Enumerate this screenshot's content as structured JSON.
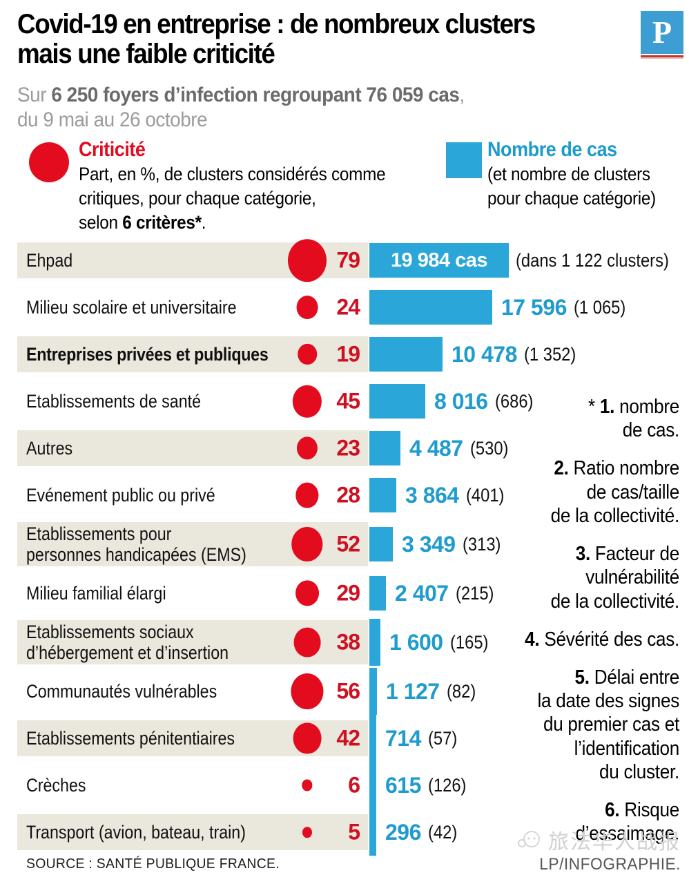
{
  "header": {
    "title_line1": "Covid-19 en entreprise : de nombreux clusters",
    "title_line2": "mais une faible criticité",
    "logo_letter": "P"
  },
  "subtitle": {
    "prefix": "Sur ",
    "bold": "6 250 foyers d’infection regroupant 76 059 cas",
    "suffix": ",",
    "line2": "du 9 mai au 26 octobre"
  },
  "legend": {
    "criticite": {
      "title": "Criticité",
      "lines": [
        "Part, en %, de clusters considérés comme",
        "critiques, pour chaque catégorie,"
      ],
      "last_prefix": "selon ",
      "last_bold": "6 critères*",
      "last_suffix": "."
    },
    "cases": {
      "title": "Nombre de cas",
      "lines": [
        "(et nombre de clusters",
        "pour chaque catégorie)"
      ]
    }
  },
  "rows": [
    {
      "label": "Ehpad",
      "label2": "",
      "bold": false,
      "shaded": true,
      "crit": 79,
      "crit_label": "79",
      "cases": 19984,
      "inside_label": "19 984 cas",
      "cases_label": "",
      "clusters_label": "(dans 1 122 clusters)"
    },
    {
      "label": "Milieu scolaire et universitaire",
      "label2": "",
      "bold": false,
      "shaded": false,
      "crit": 24,
      "crit_label": "24",
      "cases": 17596,
      "cases_label": "17 596",
      "clusters_label": "(1 065)"
    },
    {
      "label": "Entreprises privées et publiques",
      "label2": "",
      "bold": true,
      "shaded": true,
      "crit": 19,
      "crit_label": "19",
      "cases": 10478,
      "cases_label": "10 478",
      "clusters_label": "(1 352)"
    },
    {
      "label": "Etablissements de santé",
      "label2": "",
      "bold": false,
      "shaded": false,
      "crit": 45,
      "crit_label": "45",
      "cases": 8016,
      "cases_label": "8 016",
      "clusters_label": "(686)"
    },
    {
      "label": "Autres",
      "label2": "",
      "bold": false,
      "shaded": true,
      "crit": 23,
      "crit_label": "23",
      "cases": 4487,
      "cases_label": "4 487",
      "clusters_label": "(530)"
    },
    {
      "label": "Evénement public ou privé",
      "label2": "",
      "bold": false,
      "shaded": false,
      "crit": 28,
      "crit_label": "28",
      "cases": 3864,
      "cases_label": "3 864",
      "clusters_label": "(401)"
    },
    {
      "label": "Etablissements pour",
      "label2": "personnes handicapées (EMS)",
      "bold": false,
      "shaded": true,
      "crit": 52,
      "crit_label": "52",
      "cases": 3349,
      "cases_label": "3 349",
      "clusters_label": "(313)"
    },
    {
      "label": "Milieu familial élargi",
      "label2": "",
      "bold": false,
      "shaded": false,
      "crit": 29,
      "crit_label": "29",
      "cases": 2407,
      "cases_label": "2 407",
      "clusters_label": "(215)"
    },
    {
      "label": "Etablissements sociaux",
      "label2": "d’hébergement et d’insertion",
      "bold": false,
      "shaded": true,
      "crit": 38,
      "crit_label": "38",
      "cases": 1600,
      "cases_label": "1 600",
      "clusters_label": "(165)"
    },
    {
      "label": "Communautés vulnérables",
      "label2": "",
      "bold": false,
      "shaded": false,
      "crit": 56,
      "crit_label": "56",
      "cases": 1127,
      "cases_label": "1 127",
      "clusters_label": "(82)"
    },
    {
      "label": "Etablissements pénitentiaires",
      "label2": "",
      "bold": false,
      "shaded": true,
      "crit": 42,
      "crit_label": "42",
      "cases": 714,
      "cases_label": "714",
      "clusters_label": "(57)"
    },
    {
      "label": "Crèches",
      "label2": "",
      "bold": false,
      "shaded": false,
      "crit": 6,
      "crit_label": "6",
      "cases": 615,
      "cases_label": "615",
      "clusters_label": "(126)"
    },
    {
      "label": "Transport (avion, bateau, train)",
      "label2": "",
      "bold": false,
      "shaded": true,
      "crit": 5,
      "crit_label": "5",
      "cases": 296,
      "cases_label": "296",
      "clusters_label": "(42)"
    }
  ],
  "notes": [
    {
      "star": "* ",
      "num": "1.",
      "lines": [
        "nombre",
        "de cas."
      ]
    },
    {
      "star": "",
      "num": "2.",
      "lines": [
        "Ratio nombre",
        "de cas/taille",
        "de la collectivité."
      ]
    },
    {
      "star": "",
      "num": "3.",
      "lines": [
        "Facteur de",
        "vulnérabilité",
        "de la collectivité."
      ]
    },
    {
      "star": "",
      "num": "4.",
      "lines": [
        "Sévérité des cas."
      ]
    },
    {
      "star": "",
      "num": "5.",
      "lines": [
        "Délai entre",
        "la date des signes",
        "du premier cas et",
        "l’identification",
        "du cluster."
      ]
    },
    {
      "star": "",
      "num": "6.",
      "lines": [
        "Risque",
        "d’essaimage."
      ]
    }
  ],
  "source": "SOURCE : SANTÉ PUBLIQUE FRANCE.",
  "watermark": {
    "name": "旅法华人战报",
    "credit": "LP/INFOGRAPHIE."
  },
  "colors": {
    "red": "#e30b1e",
    "blue": "#2aa6d8",
    "blue_text": "#1f9ccf",
    "beige": "#eae7dd",
    "logo_blue": "#3d9ed3"
  },
  "chart_data": {
    "type": "bar",
    "orientation": "horizontal",
    "title": "Covid-19 en entreprise : de nombreux clusters mais une faible criticité",
    "subtitle": "Sur 6 250 foyers d’infection regroupant 76 059 cas, du 9 mai au 26 octobre",
    "categories": [
      "Ehpad",
      "Milieu scolaire et universitaire",
      "Entreprises privées et publiques",
      "Etablissements de santé",
      "Autres",
      "Evénement public ou privé",
      "Etablissements pour personnes handicapées (EMS)",
      "Milieu familial élargi",
      "Etablissements sociaux d’hébergement et d’insertion",
      "Communautés vulnérables",
      "Etablissements pénitentiaires",
      "Crèches",
      "Transport (avion, bateau, train)"
    ],
    "series": [
      {
        "name": "Criticité (part, en %, de clusters considérés comme critiques, selon 6 critères)",
        "mark": "circle",
        "color": "#e30b1e",
        "values": [
          79,
          24,
          19,
          45,
          23,
          28,
          52,
          29,
          38,
          56,
          42,
          6,
          5
        ]
      },
      {
        "name": "Nombre de cas",
        "mark": "bar",
        "color": "#2aa6d8",
        "values": [
          19984,
          17596,
          10478,
          8016,
          4487,
          3864,
          3349,
          2407,
          1600,
          1127,
          714,
          615,
          296
        ]
      },
      {
        "name": "Nombre de clusters",
        "mark": "annotation",
        "values": [
          1122,
          1065,
          1352,
          686,
          530,
          401,
          313,
          215,
          165,
          82,
          57,
          126,
          42
        ]
      }
    ],
    "totals": {
      "foyers": 6250,
      "cas": 76059,
      "periode": "du 9 mai au 26 octobre"
    },
    "source": "SANTÉ PUBLIQUE FRANCE",
    "grid": false,
    "legend_position": "top"
  }
}
